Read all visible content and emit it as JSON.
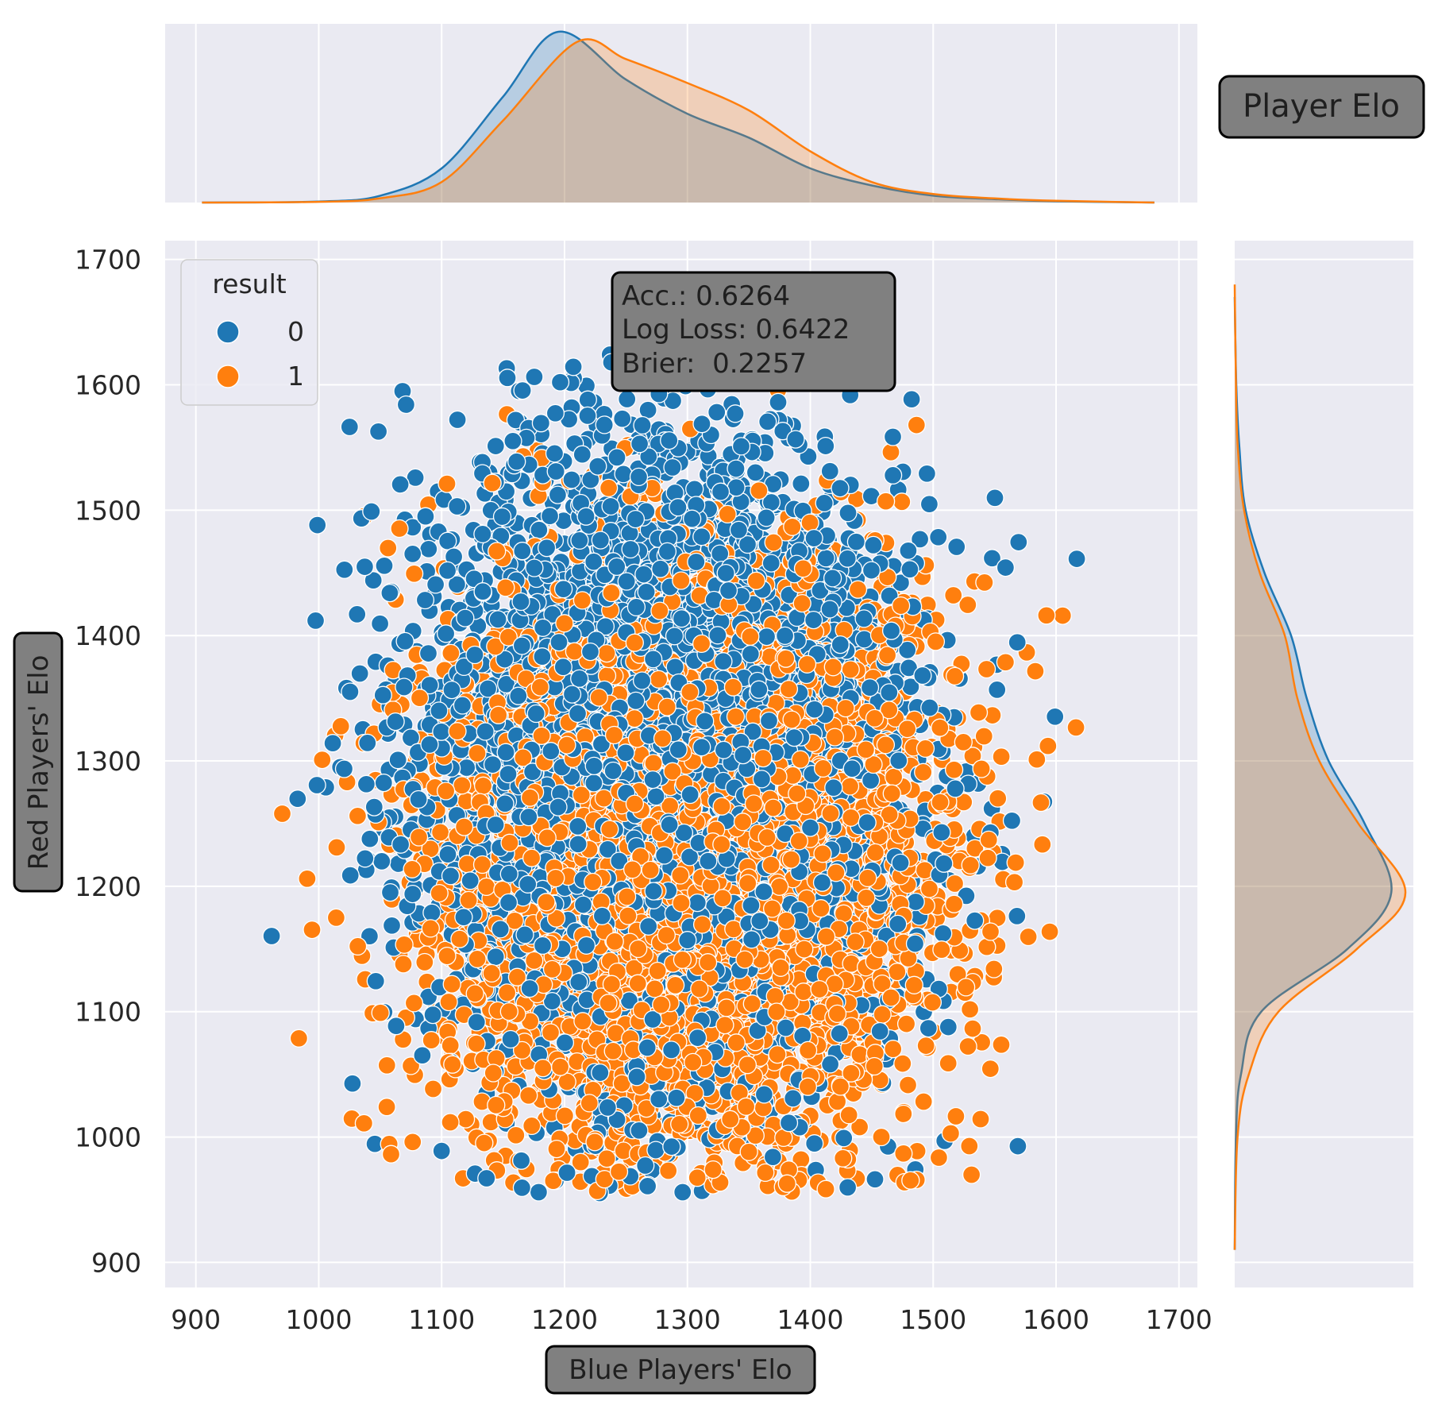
{
  "chart_data": {
    "type": "scatter",
    "kind": "joint plot with marginal KDE",
    "title": "Player Elo",
    "xlabel": "Blue Players' Elo",
    "ylabel": "Red Players' Elo",
    "xlim": [
      875,
      1715
    ],
    "ylim": [
      880,
      1715
    ],
    "xticks": [
      900,
      1000,
      1100,
      1200,
      1300,
      1400,
      1500,
      1600,
      1700
    ],
    "yticks": [
      900,
      1000,
      1100,
      1200,
      1300,
      1400,
      1500,
      1600,
      1700
    ],
    "grid": true,
    "background": "#eaeaf2",
    "legend": {
      "title": "result",
      "position": "top-left",
      "entries": [
        {
          "label": "0",
          "color": "#1f77b4"
        },
        {
          "label": "1",
          "color": "#ff7f0e"
        }
      ]
    },
    "annotation": {
      "position": "top-center",
      "lines": [
        "Acc.: 0.6264",
        "Log Loss: 0.6422",
        "Brier:  0.2257"
      ]
    },
    "series": [
      {
        "name": "0",
        "color": "#1f77b4",
        "point_cloud": {
          "count": 5000,
          "center": [
            1280,
            1300
          ],
          "spread_x": 95,
          "spread_y": 130,
          "range_x": [
            955,
            1640
          ],
          "range_y": [
            950,
            1630
          ]
        },
        "marginal_x_kde": {
          "x": [
            905,
            1000,
            1050,
            1100,
            1150,
            1195,
            1250,
            1300,
            1350,
            1400,
            1450,
            1500,
            1550,
            1600,
            1680
          ],
          "density": [
            0.0,
            0.006,
            0.04,
            0.2,
            0.62,
            1.0,
            0.72,
            0.52,
            0.38,
            0.2,
            0.1,
            0.04,
            0.02,
            0.007,
            0.0
          ]
        },
        "marginal_y_kde": {
          "y": [
            910,
            1000,
            1050,
            1100,
            1150,
            1195,
            1250,
            1300,
            1350,
            1400,
            1450,
            1500,
            1550,
            1600,
            1670
          ],
          "density": [
            0.0,
            0.008,
            0.04,
            0.17,
            0.72,
            1.0,
            0.83,
            0.6,
            0.46,
            0.36,
            0.19,
            0.07,
            0.03,
            0.01,
            0.0
          ]
        }
      },
      {
        "name": "1",
        "color": "#ff7f0e",
        "point_cloud": {
          "count": 5000,
          "center": [
            1300,
            1215
          ],
          "spread_x": 100,
          "spread_y": 120,
          "range_x": [
            950,
            1625
          ],
          "range_y": [
            955,
            1640
          ]
        },
        "marginal_x_kde": {
          "x": [
            905,
            1000,
            1050,
            1100,
            1150,
            1210,
            1250,
            1300,
            1350,
            1400,
            1450,
            1500,
            1550,
            1600,
            1680
          ],
          "density": [
            0.0,
            0.004,
            0.025,
            0.12,
            0.48,
            0.94,
            0.84,
            0.7,
            0.54,
            0.3,
            0.12,
            0.05,
            0.024,
            0.01,
            0.0
          ]
        },
        "marginal_y_kde": {
          "y": [
            910,
            1000,
            1050,
            1100,
            1150,
            1195,
            1250,
            1300,
            1350,
            1400,
            1450,
            1500,
            1550,
            1600,
            1680
          ],
          "density": [
            0.0,
            0.018,
            0.09,
            0.28,
            0.78,
            1.09,
            0.79,
            0.54,
            0.4,
            0.32,
            0.16,
            0.06,
            0.02,
            0.008,
            0.0
          ]
        }
      }
    ]
  }
}
